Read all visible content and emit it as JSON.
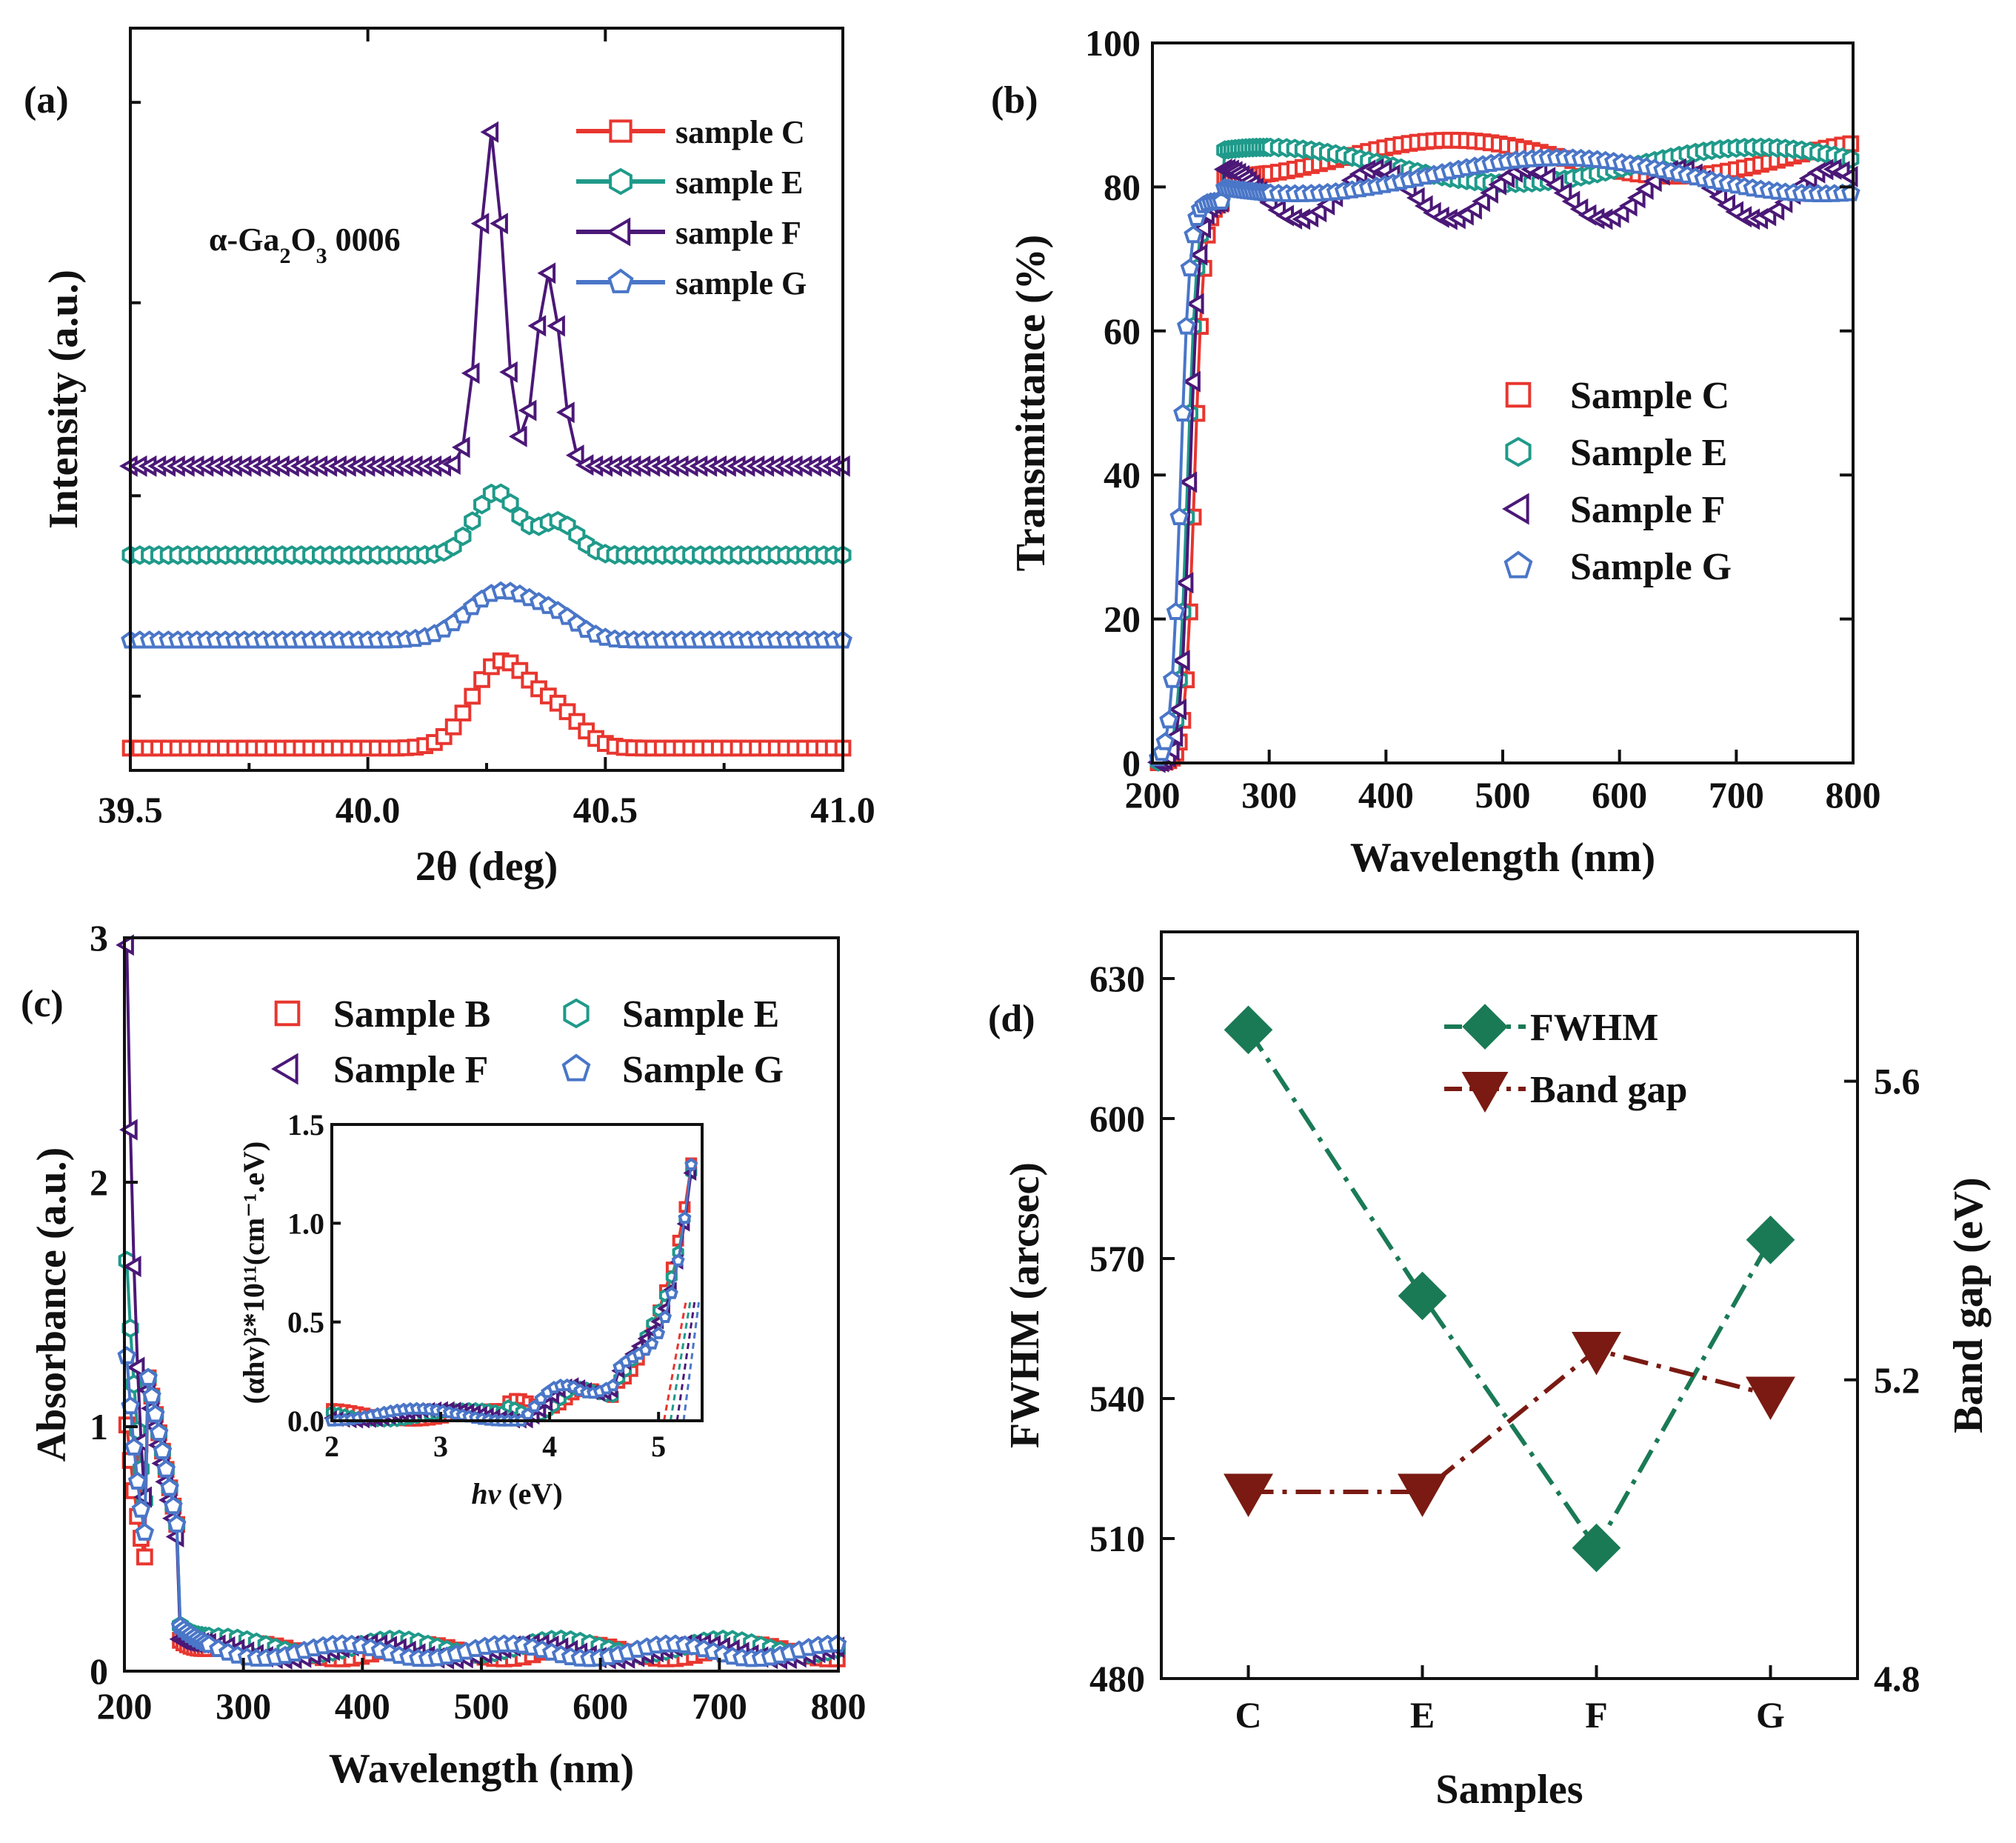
{
  "chart_data": [
    {
      "panel": "(a)",
      "type": "line",
      "xlabel": "2θ (deg)",
      "ylabel": "Intensity (a.u.)",
      "xlim": [
        39.5,
        41.0
      ],
      "ylim": [
        0,
        10
      ],
      "xticks": [
        "39.5",
        "40.0",
        "40.5",
        "41.0"
      ],
      "annotation": {
        "prefix": "α-Ga",
        "sub1": "2",
        "mid": "O",
        "sub2": "3",
        "suffix": " 0006"
      },
      "series": [
        {
          "name": "sample C",
          "color": "#e8362f",
          "marker": "square",
          "offset": 0.3,
          "peaks": [
            [
              40.28,
              1.15,
              0.06
            ],
            [
              40.4,
              0.45,
              0.05
            ]
          ]
        },
        {
          "name": "sample E",
          "color": "#1f9a8a",
          "marker": "hexagon",
          "offset": 2.9,
          "peaks": [
            [
              40.27,
              0.85,
              0.045
            ],
            [
              40.4,
              0.45,
              0.04
            ]
          ]
        },
        {
          "name": "sample F",
          "color": "#4b1877",
          "marker": "triangle-left",
          "offset": 4.1,
          "peaks": [
            [
              40.26,
              4.5,
              0.025
            ],
            [
              40.38,
              2.6,
              0.025
            ]
          ]
        },
        {
          "name": "sample G",
          "color": "#4a76c8",
          "marker": "pentagon",
          "offset": 1.75,
          "peaks": [
            [
              40.28,
              0.65,
              0.07
            ],
            [
              40.4,
              0.25,
              0.05
            ]
          ]
        }
      ]
    },
    {
      "panel": "(b)",
      "type": "line",
      "xlabel": "Wavelength (nm)",
      "ylabel": "Transmittance (%)",
      "xlim": [
        200,
        800
      ],
      "ylim": [
        0,
        100
      ],
      "xticks": [
        "200",
        "300",
        "400",
        "500",
        "600",
        "700",
        "800"
      ],
      "yticks": [
        "0",
        "20",
        "40",
        "60",
        "80",
        "100"
      ],
      "series": [
        {
          "name": "Sample C",
          "color": "#e8362f",
          "marker": "square",
          "edge": 228,
          "plateau": 84,
          "amp": 2.5,
          "period": 380,
          "phase": 0.3
        },
        {
          "name": "Sample E",
          "color": "#1f9a8a",
          "marker": "hexagon",
          "edge": 222,
          "plateau": 83,
          "amp": 2.5,
          "period": 420,
          "phase": 3.4
        },
        {
          "name": "Sample F",
          "color": "#4b1877",
          "marker": "triangle-left",
          "edge": 224,
          "plateau": 79,
          "amp": 3.5,
          "period": 130,
          "phase": 1.5
        },
        {
          "name": "Sample G",
          "color": "#4a76c8",
          "marker": "pentagon",
          "edge": 216,
          "plateau": 81.5,
          "amp": 2.5,
          "period": 450,
          "phase": 0.2
        }
      ]
    },
    {
      "panel": "(c)",
      "type": "line",
      "xlabel": "Wavelength (nm)",
      "ylabel": "Absorbance (a.u.)",
      "xlim": [
        200,
        800
      ],
      "ylim": [
        0,
        3
      ],
      "xticks": [
        "200",
        "300",
        "400",
        "500",
        "600",
        "700",
        "800"
      ],
      "yticks": [
        "0",
        "1",
        "2",
        "3"
      ],
      "series": [
        {
          "name": "Sample B",
          "color": "#e8362f",
          "marker": "square",
          "start": 1.0,
          "decay": 18,
          "base": 0.08
        },
        {
          "name": "Sample E",
          "color": "#1f9a8a",
          "marker": "hexagon",
          "start": 1.7,
          "decay": 16,
          "base": 0.1
        },
        {
          "name": "Sample F",
          "color": "#4b1877",
          "marker": "triangle-left",
          "start": 3.0,
          "decay": 10,
          "base": 0.08
        },
        {
          "name": "Sample G",
          "color": "#4a76c8",
          "marker": "pentagon",
          "start": 1.3,
          "decay": 16,
          "base": 0.08
        }
      ],
      "inset": {
        "xlabel_italic": "hv",
        "xlabel_rest": " (eV)",
        "ylabel": "(αhv)²*10¹¹(cm⁻¹.eV)",
        "xlim": [
          2,
          5.4
        ],
        "ylim": [
          0,
          1.5
        ],
        "xticks": [
          "2",
          "3",
          "4",
          "5"
        ],
        "yticks": [
          "0.0",
          "0.5",
          "1.0",
          "1.5"
        ]
      }
    },
    {
      "panel": "(d)",
      "type": "line",
      "xlabel": "Samples",
      "ylabel": "FWHM (arcsec)",
      "ylabel_right": "Band gap (eV)",
      "categories": [
        "C",
        "E",
        "F",
        "G"
      ],
      "ylim": [
        480,
        640
      ],
      "ylim_right": [
        4.8,
        5.8
      ],
      "yticks": [
        "480",
        "510",
        "540",
        "570",
        "600",
        "630"
      ],
      "yticks_right": [
        "4.8",
        "5.2",
        "5.6"
      ],
      "series": [
        {
          "name": "FWHM",
          "color": "#1a7a55",
          "marker": "diamond",
          "axis": "left",
          "values": [
            619,
            562,
            508,
            574
          ]
        },
        {
          "name": "Band gap",
          "color": "#7a1a12",
          "marker": "triangle-down",
          "axis": "right",
          "values": [
            5.05,
            5.05,
            5.24,
            5.18
          ]
        }
      ]
    }
  ]
}
